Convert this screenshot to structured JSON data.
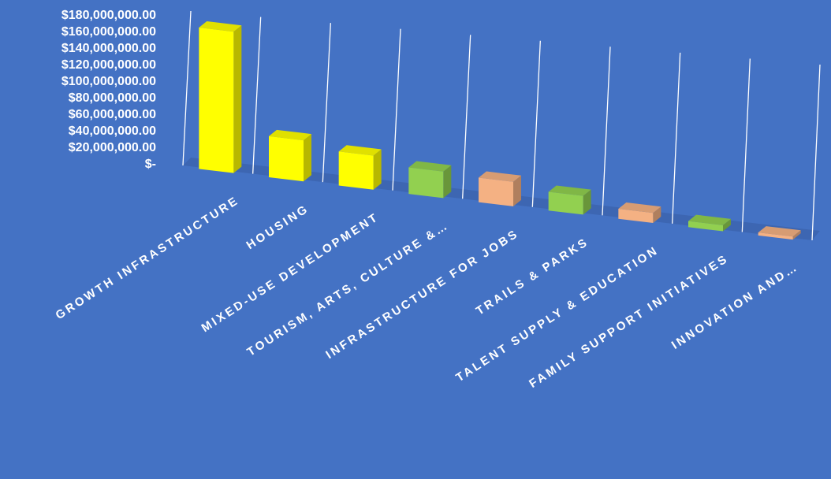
{
  "chart_data": {
    "type": "bar",
    "title": "",
    "xlabel": "",
    "ylabel": "",
    "ylim": [
      0,
      180000000
    ],
    "ytick_values": [
      0,
      20000000,
      40000000,
      60000000,
      80000000,
      100000000,
      120000000,
      140000000,
      160000000,
      180000000
    ],
    "ytick_labels": [
      "$-",
      "$20,000,000.00",
      "$40,000,000.00",
      "$60,000,000.00",
      "$80,000,000.00",
      "$100,000,000.00",
      "$120,000,000.00",
      "$140,000,000.00",
      "$160,000,000.00",
      "$180,000,000.00"
    ],
    "categories": [
      "GROWTH INFRASTRUCTURE",
      "HOUSING",
      "MIXED-USE DEVELOPMENT",
      "TOURISM, ARTS, CULTURE &…",
      "INFRASTRUCTURE FOR JOBS",
      "TRAILS & PARKS",
      "TALENT SUPPLY & EDUCATION",
      "FAMILY SUPPORT INITIATIVES",
      "INNOVATION AND…"
    ],
    "values": [
      170000000,
      50000000,
      42000000,
      33000000,
      31000000,
      24000000,
      13000000,
      8000000,
      4000000
    ],
    "bar_colors": [
      "#FFFF00",
      "#FFFF00",
      "#FFFF00",
      "#92D050",
      "#F4B183",
      "#92D050",
      "#F4B183",
      "#92D050",
      "#F4B183"
    ],
    "grid": true,
    "legend": "none"
  }
}
